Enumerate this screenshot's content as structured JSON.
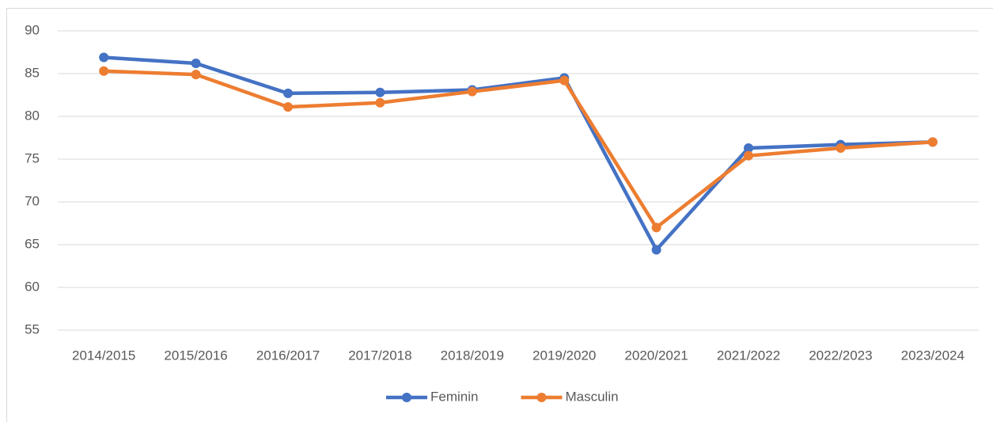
{
  "chart_data": {
    "type": "line",
    "categories": [
      "2014/2015",
      "2015/2016",
      "2016/2017",
      "2017/2018",
      "2018/2019",
      "2019/2020",
      "2020/2021",
      "2021/2022",
      "2022/2023",
      "2023/2024"
    ],
    "series": [
      {
        "name": "Feminin",
        "color": "#4472c4",
        "values": [
          86.9,
          86.2,
          82.7,
          82.8,
          83.1,
          84.5,
          64.4,
          76.3,
          76.7,
          77.0
        ]
      },
      {
        "name": "Masculin",
        "color": "#ed7d31",
        "values": [
          85.3,
          84.9,
          81.1,
          81.6,
          82.9,
          84.2,
          67.0,
          75.4,
          76.3,
          77.0
        ]
      }
    ],
    "ylim": [
      55,
      90
    ],
    "yticks": [
      55,
      60,
      65,
      70,
      75,
      80,
      85,
      90
    ],
    "grid": true,
    "legend": "bottom"
  }
}
